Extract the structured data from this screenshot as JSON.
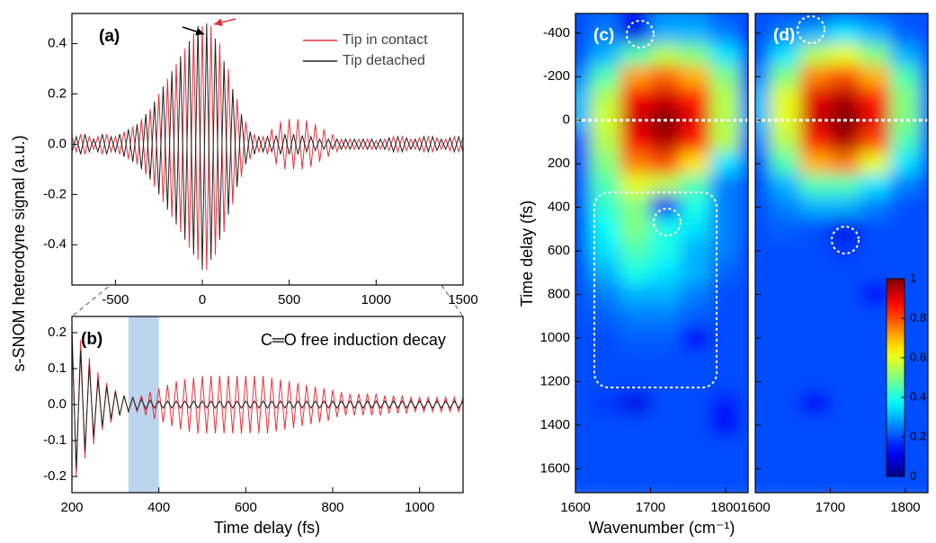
{
  "chart_data": [
    {
      "type": "line",
      "label": "(a)",
      "ylabel": "s-SNOM heterodyne signal (a.u.)",
      "xlim": [
        -750,
        1500
      ],
      "xticks": [
        -500,
        0,
        500,
        1000,
        1500
      ],
      "ylim": [
        -0.56,
        0.52
      ],
      "yticks": [
        -0.4,
        -0.2,
        {
          "value": 0,
          "label": "0.0"
        },
        0.2,
        0.4
      ],
      "legend": "top-right",
      "x": [
        -750,
        -725,
        -700,
        -675,
        -650,
        -625,
        -600,
        -575,
        -550,
        -525,
        -500,
        -475,
        -450,
        -425,
        -400,
        -375,
        -350,
        -325,
        -300,
        -275,
        -250,
        -225,
        -200,
        -175,
        -150,
        -125,
        -100,
        -75,
        -50,
        -25,
        0,
        25,
        50,
        75,
        100,
        125,
        150,
        175,
        200,
        225,
        250,
        275,
        300,
        325,
        350,
        375,
        400,
        425,
        450,
        475,
        500,
        525,
        550,
        575,
        600,
        625,
        650,
        675,
        700,
        725,
        750,
        775,
        800,
        825,
        850,
        875,
        900,
        925,
        950,
        975,
        1000,
        1025,
        1050,
        1075,
        1100,
        1125,
        1150,
        1175,
        1200,
        1225,
        1250,
        1275,
        1300,
        1325,
        1350,
        1375,
        1400,
        1425,
        1450,
        1475,
        1500
      ],
      "series": [
        {
          "name": "Tip in contact",
          "color": "#e8303a",
          "values": [
            0.03,
            -0.03,
            0.04,
            -0.04,
            0.03,
            -0.02,
            0.03,
            -0.04,
            0.04,
            -0.03,
            0.03,
            -0.04,
            0.05,
            -0.06,
            0.07,
            -0.08,
            0.1,
            -0.12,
            0.14,
            -0.17,
            0.2,
            -0.23,
            0.26,
            -0.29,
            0.32,
            -0.35,
            0.38,
            -0.41,
            0.44,
            -0.46,
            0.47,
            -0.5,
            0.47,
            -0.44,
            0.4,
            -0.35,
            0.3,
            -0.24,
            0.18,
            -0.13,
            0.09,
            -0.06,
            0.04,
            -0.03,
            0.03,
            -0.04,
            0.06,
            -0.08,
            0.09,
            -0.1,
            0.1,
            -0.1,
            0.1,
            -0.1,
            0.095,
            -0.09,
            0.08,
            -0.07,
            0.06,
            -0.05,
            0.04,
            -0.03,
            0.02,
            -0.02,
            0.02,
            -0.02,
            0.02,
            -0.02,
            0.02,
            -0.02,
            0.015,
            -0.02,
            0.02,
            -0.025,
            0.03,
            -0.03,
            0.03,
            -0.025,
            0.02,
            -0.02,
            0.025,
            -0.03,
            0.03,
            -0.03,
            0.025,
            -0.02,
            0.02,
            -0.025,
            0.03,
            -0.03,
            0.03
          ]
        },
        {
          "name": "Tip detached",
          "color": "#222222",
          "values": [
            -0.03,
            0.03,
            -0.04,
            0.04,
            -0.03,
            0.02,
            -0.03,
            0.04,
            -0.04,
            0.03,
            -0.03,
            0.04,
            -0.05,
            0.06,
            -0.07,
            0.08,
            -0.1,
            0.12,
            -0.14,
            0.17,
            -0.2,
            0.23,
            -0.26,
            0.29,
            -0.32,
            0.35,
            -0.38,
            0.41,
            -0.44,
            0.47,
            -0.5,
            0.48,
            -0.46,
            0.42,
            -0.38,
            0.33,
            -0.28,
            0.22,
            -0.17,
            0.12,
            -0.08,
            0.05,
            -0.04,
            0.03,
            -0.03,
            0.03,
            -0.03,
            0.035,
            -0.04,
            0.04,
            -0.04,
            0.04,
            -0.04,
            0.035,
            -0.03,
            0.03,
            -0.025,
            0.02,
            -0.02,
            0.02,
            -0.02,
            0.02,
            -0.02,
            0.02,
            -0.02,
            0.02,
            -0.02,
            0.02,
            -0.02,
            0.02,
            -0.02,
            0.02,
            -0.02,
            0.025,
            -0.03,
            0.03,
            -0.03,
            0.025,
            -0.02,
            0.02,
            -0.025,
            0.03,
            -0.03,
            0.03,
            -0.025,
            0.02,
            -0.02,
            0.025,
            -0.03,
            0.03,
            -0.03
          ]
        }
      ]
    },
    {
      "type": "line",
      "label": "(b)",
      "xlabel": "Time delay (fs)",
      "annotation": "C═O free induction decay",
      "shaded_region": [
        330,
        400
      ],
      "xlim": [
        200,
        1100
      ],
      "xticks": [
        200,
        400,
        600,
        800,
        1000
      ],
      "ylim": [
        -0.245,
        0.245
      ],
      "yticks": [
        -0.2,
        -0.1,
        {
          "value": 0,
          "label": "0.0"
        },
        0.1,
        0.2
      ],
      "x": [
        200,
        210,
        220,
        230,
        240,
        250,
        260,
        270,
        280,
        290,
        300,
        310,
        320,
        330,
        340,
        350,
        360,
        370,
        380,
        390,
        400,
        410,
        420,
        430,
        440,
        450,
        460,
        470,
        480,
        490,
        500,
        510,
        520,
        530,
        540,
        550,
        560,
        570,
        580,
        590,
        600,
        610,
        620,
        630,
        640,
        650,
        660,
        670,
        680,
        690,
        700,
        710,
        720,
        730,
        740,
        750,
        760,
        770,
        780,
        790,
        800,
        810,
        820,
        830,
        840,
        850,
        860,
        870,
        880,
        890,
        900,
        910,
        920,
        930,
        940,
        950,
        960,
        970,
        980,
        990,
        1000,
        1010,
        1020,
        1030,
        1040,
        1050,
        1060,
        1070,
        1080,
        1090,
        1100
      ],
      "series": [
        {
          "name": "Tip in contact",
          "color": "#e8303a",
          "values": [
            0.22,
            -0.2,
            0.18,
            -0.15,
            0.13,
            -0.11,
            0.09,
            -0.07,
            0.06,
            -0.05,
            0.04,
            -0.03,
            0.025,
            -0.02,
            0.02,
            -0.02,
            0.025,
            -0.03,
            0.035,
            -0.04,
            0.045,
            -0.05,
            0.055,
            -0.06,
            0.065,
            -0.07,
            0.07,
            -0.075,
            0.075,
            -0.08,
            0.08,
            -0.08,
            0.08,
            -0.08,
            0.08,
            -0.08,
            0.08,
            -0.08,
            0.08,
            -0.08,
            0.08,
            -0.08,
            0.08,
            -0.08,
            0.08,
            -0.08,
            0.075,
            -0.075,
            0.07,
            -0.07,
            0.065,
            -0.065,
            0.06,
            -0.06,
            0.055,
            -0.055,
            0.05,
            -0.05,
            0.045,
            -0.045,
            0.04,
            -0.035,
            0.035,
            -0.03,
            0.03,
            -0.03,
            0.03,
            -0.03,
            0.03,
            -0.03,
            0.03,
            -0.03,
            0.025,
            -0.025,
            0.025,
            -0.025,
            0.025,
            -0.025,
            0.02,
            -0.02,
            0.02,
            -0.02,
            0.02,
            -0.02,
            0.02,
            -0.02,
            0.02,
            -0.02,
            0.02,
            -0.02,
            0.02
          ]
        },
        {
          "name": "Tip detached",
          "color": "#222222",
          "values": [
            0.2,
            -0.18,
            0.15,
            -0.13,
            0.11,
            -0.09,
            0.07,
            -0.06,
            0.05,
            -0.04,
            0.035,
            -0.03,
            0.025,
            -0.02,
            0.02,
            -0.015,
            0.015,
            -0.012,
            0.012,
            -0.01,
            0.01,
            -0.01,
            0.01,
            -0.01,
            0.01,
            -0.01,
            0.01,
            -0.01,
            0.01,
            -0.01,
            0.01,
            -0.01,
            0.01,
            -0.01,
            0.01,
            -0.01,
            0.01,
            -0.01,
            0.01,
            -0.01,
            0.01,
            -0.01,
            0.01,
            -0.01,
            0.01,
            -0.01,
            0.01,
            -0.01,
            0.01,
            -0.01,
            0.01,
            -0.01,
            0.01,
            -0.01,
            0.01,
            -0.01,
            0.01,
            -0.01,
            0.01,
            -0.01,
            0.01,
            -0.01,
            0.01,
            -0.01,
            0.01,
            -0.01,
            0.01,
            -0.01,
            0.01,
            -0.01,
            0.01,
            -0.01,
            0.01,
            -0.01,
            0.01,
            -0.01,
            0.01,
            -0.01,
            0.01,
            -0.01,
            0.01,
            -0.01,
            0.01,
            -0.01,
            0.01,
            -0.01,
            0.01,
            -0.01,
            0.01,
            -0.01,
            0.01
          ]
        }
      ]
    },
    {
      "type": "heatmap",
      "label": "(c)",
      "ylabel": "Time delay (fs)",
      "xlabel": "Wavenumber (cm⁻¹)",
      "colormap": "jet",
      "clim": [
        0,
        1
      ],
      "dashed_line_y": 0,
      "xlim": [
        1600,
        1830
      ],
      "xticks": [
        1600,
        1700,
        1800
      ],
      "ylim": [
        1710,
        -490
      ],
      "yticks": [
        -400,
        -200,
        0,
        200,
        400,
        600,
        800,
        1000,
        1200,
        1400,
        1600
      ],
      "x": [
        1600,
        1640,
        1680,
        1720,
        1760,
        1800,
        1840
      ],
      "y": [
        -500,
        -400,
        -300,
        -200,
        -100,
        0,
        100,
        200,
        300,
        400,
        500,
        600,
        700,
        800,
        900,
        1000,
        1100,
        1200,
        1300,
        1400,
        1500,
        1600,
        1700
      ],
      "z": [
        [
          0.2,
          0.22,
          0.12,
          0.25,
          0.25,
          0.2,
          0.2
        ],
        [
          0.2,
          0.25,
          0.1,
          0.3,
          0.3,
          0.25,
          0.15
        ],
        [
          0.2,
          0.3,
          0.45,
          0.55,
          0.5,
          0.35,
          0.2
        ],
        [
          0.25,
          0.45,
          0.72,
          0.78,
          0.7,
          0.5,
          0.15
        ],
        [
          0.3,
          0.55,
          0.88,
          0.92,
          0.85,
          0.55,
          0.22
        ],
        [
          0.3,
          0.58,
          0.92,
          1.0,
          0.9,
          0.55,
          0.25
        ],
        [
          0.2,
          0.55,
          0.88,
          0.95,
          0.85,
          0.55,
          0.2
        ],
        [
          0.2,
          0.5,
          0.75,
          0.8,
          0.65,
          0.35,
          0.2
        ],
        [
          0.2,
          0.45,
          0.6,
          0.55,
          0.45,
          0.25,
          0.2
        ],
        [
          0.2,
          0.42,
          0.5,
          0.12,
          0.4,
          0.25,
          0.2
        ],
        [
          0.2,
          0.38,
          0.5,
          0.4,
          0.35,
          0.25,
          0.2
        ],
        [
          0.2,
          0.35,
          0.45,
          0.4,
          0.3,
          0.25,
          0.18
        ],
        [
          0.2,
          0.3,
          0.4,
          0.35,
          0.3,
          0.22,
          0.2
        ],
        [
          0.2,
          0.25,
          0.3,
          0.3,
          0.25,
          0.2,
          0.2
        ],
        [
          0.2,
          0.22,
          0.25,
          0.25,
          0.22,
          0.2,
          0.2
        ],
        [
          0.2,
          0.2,
          0.22,
          0.22,
          0.12,
          0.2,
          0.2
        ],
        [
          0.2,
          0.2,
          0.2,
          0.2,
          0.2,
          0.2,
          0.2
        ],
        [
          0.2,
          0.2,
          0.2,
          0.2,
          0.2,
          0.2,
          0.2
        ],
        [
          0.2,
          0.18,
          0.1,
          0.2,
          0.2,
          0.15,
          0.2
        ],
        [
          0.2,
          0.2,
          0.2,
          0.2,
          0.2,
          0.12,
          0.2
        ],
        [
          0.2,
          0.2,
          0.2,
          0.2,
          0.2,
          0.2,
          0.2
        ],
        [
          0.2,
          0.2,
          0.2,
          0.2,
          0.2,
          0.2,
          0.2
        ],
        [
          0.2,
          0.2,
          0.2,
          0.2,
          0.2,
          0.2,
          0.2
        ]
      ]
    },
    {
      "type": "heatmap",
      "label": "(d)",
      "colormap": "jet",
      "clim": [
        0,
        1
      ],
      "colorbar_ticks": [
        0,
        0.2,
        0.4,
        0.6,
        0.8,
        1
      ],
      "dashed_line_y": 0,
      "xlim": [
        1600,
        1830
      ],
      "xticks": [
        1600,
        1700,
        1800
      ],
      "ylim": [
        1710,
        -490
      ],
      "x": [
        1600,
        1640,
        1680,
        1720,
        1760,
        1800,
        1840
      ],
      "y": [
        -500,
        -400,
        -300,
        -200,
        -100,
        0,
        100,
        200,
        300,
        400,
        500,
        600,
        700,
        800,
        900,
        1000,
        1100,
        1200,
        1300,
        1400,
        1500,
        1600,
        1700
      ],
      "z": [
        [
          0.2,
          0.2,
          0.1,
          0.22,
          0.2,
          0.2,
          0.2
        ],
        [
          0.2,
          0.25,
          0.3,
          0.35,
          0.3,
          0.22,
          0.2
        ],
        [
          0.2,
          0.35,
          0.55,
          0.6,
          0.5,
          0.3,
          0.2
        ],
        [
          0.25,
          0.5,
          0.75,
          0.8,
          0.7,
          0.45,
          0.2
        ],
        [
          0.3,
          0.6,
          0.9,
          0.95,
          0.85,
          0.5,
          0.22
        ],
        [
          0.3,
          0.6,
          0.92,
          1.0,
          0.9,
          0.5,
          0.2
        ],
        [
          0.25,
          0.55,
          0.85,
          0.95,
          0.8,
          0.45,
          0.2
        ],
        [
          0.2,
          0.45,
          0.7,
          0.75,
          0.6,
          0.35,
          0.2
        ],
        [
          0.2,
          0.3,
          0.45,
          0.45,
          0.35,
          0.25,
          0.2
        ],
        [
          0.2,
          0.25,
          0.3,
          0.3,
          0.25,
          0.2,
          0.2
        ],
        [
          0.2,
          0.22,
          0.2,
          0.1,
          0.2,
          0.2,
          0.2
        ],
        [
          0.2,
          0.2,
          0.2,
          0.18,
          0.2,
          0.2,
          0.2
        ],
        [
          0.2,
          0.2,
          0.2,
          0.2,
          0.2,
          0.2,
          0.2
        ],
        [
          0.2,
          0.2,
          0.2,
          0.2,
          0.12,
          0.2,
          0.2
        ],
        [
          0.2,
          0.2,
          0.2,
          0.2,
          0.2,
          0.2,
          0.2
        ],
        [
          0.2,
          0.2,
          0.2,
          0.2,
          0.2,
          0.2,
          0.2
        ],
        [
          0.2,
          0.2,
          0.2,
          0.2,
          0.2,
          0.2,
          0.2
        ],
        [
          0.2,
          0.2,
          0.2,
          0.2,
          0.2,
          0.2,
          0.2
        ],
        [
          0.2,
          0.2,
          0.12,
          0.2,
          0.2,
          0.2,
          0.2
        ],
        [
          0.2,
          0.2,
          0.2,
          0.2,
          0.2,
          0.2,
          0.2
        ],
        [
          0.2,
          0.2,
          0.2,
          0.2,
          0.2,
          0.2,
          0.2
        ],
        [
          0.2,
          0.2,
          0.2,
          0.2,
          0.2,
          0.2,
          0.2
        ],
        [
          0.2,
          0.2,
          0.2,
          0.2,
          0.2,
          0.2,
          0.2
        ]
      ]
    }
  ]
}
